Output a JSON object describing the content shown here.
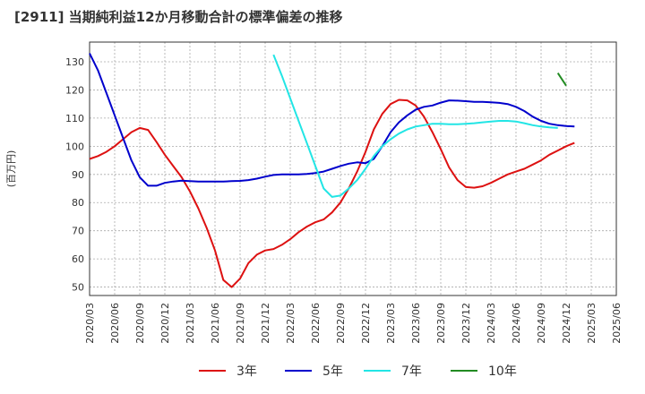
{
  "chart_data": {
    "type": "line",
    "title": "[2911]  当期純利益12か月移動合計の標準偏差の推移",
    "ylabel": "(百万円)",
    "xlabel": "",
    "ylim": [
      47,
      137
    ],
    "yticks": [
      50,
      60,
      70,
      80,
      90,
      100,
      110,
      120,
      130
    ],
    "x_start": "2020/03",
    "x_step_months": 1,
    "xtick_labels": [
      "2020/03",
      "2020/06",
      "2020/09",
      "2020/12",
      "2021/03",
      "2021/06",
      "2021/09",
      "2021/12",
      "2022/03",
      "2022/06",
      "2022/09",
      "2022/12",
      "2023/03",
      "2023/06",
      "2023/09",
      "2023/12",
      "2024/03",
      "2024/06",
      "2024/09",
      "2024/12",
      "2025/03",
      "2025/06"
    ],
    "grid": true,
    "legend_position": "bottom",
    "series": [
      {
        "name": "3年",
        "color": "#dd1111",
        "start_index": 0,
        "values": [
          95.5,
          96.5,
          98,
          100,
          102.5,
          105,
          106.5,
          105.8,
          101.5,
          97,
          93,
          89,
          84,
          78,
          71,
          63,
          52.5,
          50,
          53,
          58.5,
          61.5,
          63,
          63.5,
          65,
          67,
          69.5,
          71.5,
          73,
          74,
          76.5,
          80,
          85,
          91,
          98,
          106,
          111.5,
          115,
          116.5,
          116.3,
          114.5,
          110.5,
          105,
          99,
          92.5,
          88,
          85.5,
          85.3,
          85.8,
          87,
          88.5,
          90,
          91,
          92,
          93.5,
          95,
          97,
          98.5,
          100,
          101.2
        ]
      },
      {
        "name": "5年",
        "color": "#0000cc",
        "start_index": 0,
        "values": [
          133,
          127,
          119,
          111,
          103,
          95,
          89,
          86,
          86,
          87,
          87.5,
          87.8,
          87.6,
          87.5,
          87.5,
          87.5,
          87.5,
          87.6,
          87.7,
          88,
          88.5,
          89.2,
          89.8,
          90,
          90,
          90,
          90.2,
          90.5,
          91,
          92,
          93,
          93.8,
          94.3,
          94,
          95.5,
          100,
          105,
          108.5,
          111,
          113,
          114,
          114.5,
          115.5,
          116.3,
          116.2,
          116,
          115.8,
          115.8,
          115.6,
          115.4,
          115,
          114,
          112.5,
          110.5,
          109,
          108,
          107.5,
          107.2,
          107
        ]
      },
      {
        "name": "7年",
        "color": "#22e5e5",
        "start_index": 22,
        "values": [
          132.5,
          125,
          117,
          109,
          101,
          93,
          85,
          82,
          82.5,
          85,
          88,
          92,
          96.5,
          100,
          102.5,
          104.5,
          106,
          107,
          107.5,
          108,
          108,
          107.8,
          107.8,
          108,
          108.2,
          108.5,
          108.8,
          109,
          109,
          108.8,
          108.2,
          107.5,
          107,
          106.7,
          106.5
        ]
      },
      {
        "name": "10年",
        "color": "#228b22",
        "start_index": 56,
        "values": [
          126,
          121.5
        ]
      }
    ]
  }
}
